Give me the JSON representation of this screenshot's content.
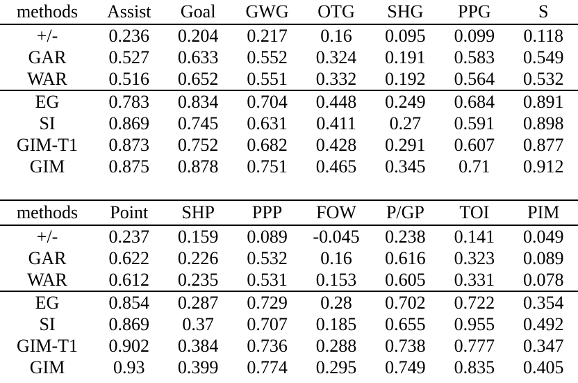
{
  "tables": [
    {
      "columns": [
        "methods",
        "Assist",
        "Goal",
        "GWG",
        "OTG",
        "SHG",
        "PPG",
        "S"
      ],
      "rows": [
        {
          "method": "+/-",
          "values": [
            "0.236",
            "0.204",
            "0.217",
            "0.16",
            "0.095",
            "0.099",
            "0.118"
          ],
          "bold": [
            false,
            false,
            false,
            false,
            false,
            false,
            false
          ],
          "method_bold": false
        },
        {
          "method": "GAR",
          "values": [
            "0.527",
            "0.633",
            "0.552",
            "0.324",
            "0.191",
            "0.583",
            "0.549"
          ],
          "bold": [
            false,
            false,
            false,
            false,
            false,
            false,
            false
          ],
          "method_bold": false
        },
        {
          "method": "WAR",
          "values": [
            "0.516",
            "0.652",
            "0.551",
            "0.332",
            "0.192",
            "0.564",
            "0.532"
          ],
          "bold": [
            false,
            false,
            false,
            false,
            false,
            false,
            false
          ],
          "method_bold": false
        },
        {
          "method": "EG",
          "values": [
            "0.783",
            "0.834",
            "0.704",
            "0.448",
            "0.249",
            "0.684",
            "0.891"
          ],
          "bold": [
            false,
            false,
            false,
            false,
            false,
            false,
            false
          ],
          "method_bold": false
        },
        {
          "method": "SI",
          "values": [
            "0.869",
            "0.745",
            "0.631",
            "0.411",
            "0.27",
            "0.591",
            "0.898"
          ],
          "bold": [
            false,
            false,
            false,
            false,
            false,
            false,
            false
          ],
          "method_bold": false
        },
        {
          "method": "GIM-T1",
          "values": [
            "0.873",
            "0.752",
            "0.682",
            "0.428",
            "0.291",
            "0.607",
            "0.877"
          ],
          "bold": [
            false,
            false,
            false,
            false,
            false,
            false,
            false
          ],
          "method_bold": false
        },
        {
          "method": "GIM",
          "values": [
            "0.875",
            "0.878",
            "0.751",
            "0.465",
            "0.345",
            "0.71",
            "0.912"
          ],
          "bold": [
            true,
            true,
            true,
            true,
            true,
            true,
            true
          ],
          "method_bold": true
        }
      ]
    },
    {
      "columns": [
        "methods",
        "Point",
        "SHP",
        "PPP",
        "FOW",
        "P/GP",
        "TOI",
        "PIM"
      ],
      "rows": [
        {
          "method": "+/-",
          "values": [
            "0.237",
            "0.159",
            "0.089",
            "-0.045",
            "0.238",
            "0.141",
            "0.049"
          ],
          "bold": [
            false,
            false,
            false,
            false,
            false,
            false,
            false
          ],
          "method_bold": false
        },
        {
          "method": "GAR",
          "values": [
            "0.622",
            "0.226",
            "0.532",
            "0.16",
            "0.616",
            "0.323",
            "0.089"
          ],
          "bold": [
            false,
            false,
            false,
            false,
            false,
            false,
            false
          ],
          "method_bold": false
        },
        {
          "method": "WAR",
          "values": [
            "0.612",
            "0.235",
            "0.531",
            "0.153",
            "0.605",
            "0.331",
            "0.078"
          ],
          "bold": [
            false,
            false,
            false,
            false,
            false,
            false,
            false
          ],
          "method_bold": false
        },
        {
          "method": "EG",
          "values": [
            "0.854",
            "0.287",
            "0.729",
            "0.28",
            "0.702",
            "0.722",
            "0.354"
          ],
          "bold": [
            false,
            false,
            false,
            false,
            false,
            false,
            false
          ],
          "method_bold": false
        },
        {
          "method": "SI",
          "values": [
            "0.869",
            "0.37",
            "0.707",
            "0.185",
            "0.655",
            "0.955",
            "0.492"
          ],
          "bold": [
            false,
            false,
            false,
            false,
            false,
            true,
            true
          ],
          "method_bold": false
        },
        {
          "method": "GIM-T1",
          "values": [
            "0.902",
            "0.384",
            "0.736",
            "0.288",
            "0.738",
            "0.777",
            "0.347"
          ],
          "bold": [
            false,
            false,
            false,
            false,
            false,
            false,
            false
          ],
          "method_bold": false
        },
        {
          "method": "GIM",
          "values": [
            "0.93",
            "0.399",
            "0.774",
            "0.295",
            "0.749",
            "0.835",
            "0.405"
          ],
          "bold": [
            true,
            true,
            true,
            true,
            true,
            false,
            false
          ],
          "method_bold": true
        }
      ]
    }
  ]
}
